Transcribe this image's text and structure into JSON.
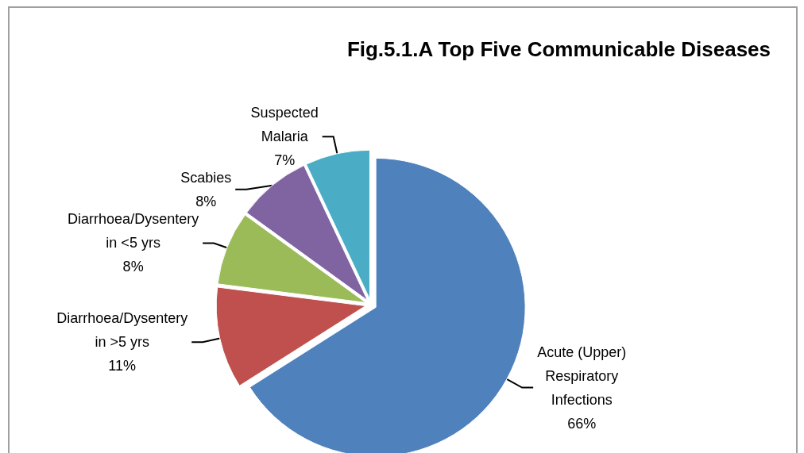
{
  "chart_data": {
    "type": "pie",
    "title": "Fig.5.1.A Top Five Communicable Diseases",
    "categories": [
      "Acute (Upper) Respiratory Infections",
      "Diarrhoea/Dysentery in >5 yrs",
      "Diarrhoea/Dysentery in <5 yrs",
      "Scabies",
      "Suspected Malaria"
    ],
    "values": [
      66,
      11,
      8,
      8,
      7
    ],
    "colors": [
      "#4f81bd",
      "#c0504d",
      "#9bbb59",
      "#8064a2",
      "#4bacc6"
    ],
    "value_labels": [
      "66%",
      "11%",
      "8%",
      "8%",
      "7%"
    ],
    "legend": false
  }
}
